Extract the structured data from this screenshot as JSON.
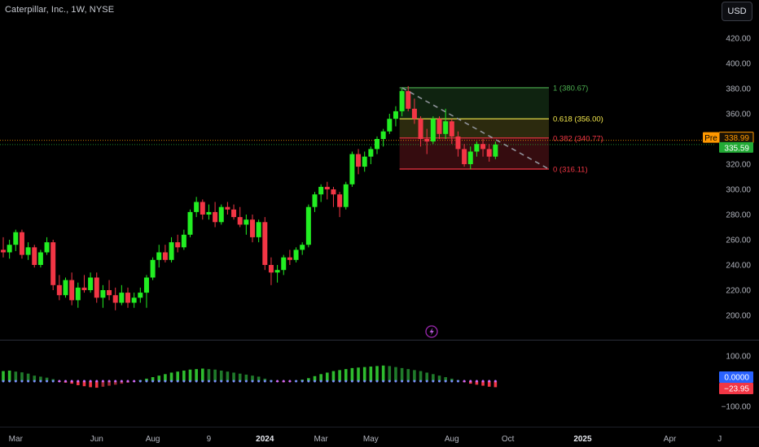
{
  "header": {
    "title": "Caterpillar, Inc., 1W, NYSE",
    "currency": "USD"
  },
  "chart_data": {
    "type": "candlestick",
    "symbol": "Caterpillar, Inc.",
    "interval": "1W",
    "exchange": "NYSE",
    "ylim": [
      180,
      440
    ],
    "y_ticks": [
      200,
      220,
      240,
      260,
      280,
      300,
      320,
      340,
      360,
      380,
      400,
      420
    ],
    "x_ticks": [
      {
        "label": "Mar",
        "bold": false,
        "bar": 2
      },
      {
        "label": "Jun",
        "bold": false,
        "bar": 15
      },
      {
        "label": "Aug",
        "bold": false,
        "bar": 24
      },
      {
        "label": "9",
        "bold": false,
        "bar": 33
      },
      {
        "label": "2024",
        "bold": true,
        "bar": 42
      },
      {
        "label": "Mar",
        "bold": false,
        "bar": 51
      },
      {
        "label": "May",
        "bold": false,
        "bar": 59
      },
      {
        "label": "Aug",
        "bold": false,
        "bar": 72
      },
      {
        "label": "Oct",
        "bold": false,
        "bar": 81
      },
      {
        "label": "2025",
        "bold": true,
        "bar": 93
      },
      {
        "label": "Apr",
        "bold": false,
        "bar": 107
      },
      {
        "label": "J",
        "bold": false,
        "bar": 115
      }
    ],
    "candles": [
      [
        252,
        262,
        246,
        250
      ],
      [
        250,
        260,
        245,
        256
      ],
      [
        256,
        268,
        251,
        266
      ],
      [
        266,
        268,
        245,
        248
      ],
      [
        248,
        258,
        244,
        254
      ],
      [
        254,
        256,
        238,
        240
      ],
      [
        240,
        252,
        238,
        250
      ],
      [
        250,
        262,
        248,
        258
      ],
      [
        258,
        260,
        220,
        224
      ],
      [
        224,
        232,
        212,
        216
      ],
      [
        216,
        230,
        214,
        228
      ],
      [
        228,
        234,
        208,
        212
      ],
      [
        212,
        226,
        206,
        222
      ],
      [
        222,
        232,
        218,
        220
      ],
      [
        220,
        234,
        218,
        230
      ],
      [
        230,
        234,
        210,
        214
      ],
      [
        214,
        224,
        206,
        220
      ],
      [
        220,
        228,
        212,
        216
      ],
      [
        216,
        222,
        204,
        210
      ],
      [
        210,
        224,
        208,
        218
      ],
      [
        218,
        222,
        206,
        210
      ],
      [
        210,
        218,
        206,
        214
      ],
      [
        214,
        222,
        210,
        218
      ],
      [
        218,
        232,
        206,
        230
      ],
      [
        230,
        246,
        228,
        244
      ],
      [
        244,
        256,
        238,
        250
      ],
      [
        250,
        256,
        242,
        244
      ],
      [
        244,
        262,
        242,
        258
      ],
      [
        258,
        264,
        250,
        254
      ],
      [
        254,
        268,
        252,
        264
      ],
      [
        264,
        284,
        262,
        282
      ],
      [
        282,
        294,
        278,
        290
      ],
      [
        290,
        292,
        276,
        280
      ],
      [
        280,
        288,
        276,
        282
      ],
      [
        282,
        290,
        270,
        274
      ],
      [
        274,
        288,
        272,
        286
      ],
      [
        286,
        290,
        280,
        284
      ],
      [
        284,
        288,
        276,
        278
      ],
      [
        278,
        286,
        270,
        272
      ],
      [
        272,
        280,
        264,
        276
      ],
      [
        276,
        280,
        258,
        262
      ],
      [
        262,
        276,
        258,
        274
      ],
      [
        274,
        278,
        236,
        240
      ],
      [
        240,
        246,
        224,
        234
      ],
      [
        234,
        240,
        226,
        236
      ],
      [
        236,
        248,
        232,
        246
      ],
      [
        246,
        252,
        240,
        244
      ],
      [
        244,
        254,
        242,
        252
      ],
      [
        252,
        258,
        248,
        256
      ],
      [
        256,
        288,
        254,
        286
      ],
      [
        286,
        298,
        282,
        296
      ],
      [
        296,
        304,
        290,
        302
      ],
      [
        302,
        306,
        292,
        300
      ],
      [
        300,
        302,
        286,
        296
      ],
      [
        296,
        298,
        278,
        286
      ],
      [
        286,
        306,
        284,
        304
      ],
      [
        304,
        330,
        302,
        328
      ],
      [
        328,
        332,
        312,
        318
      ],
      [
        318,
        330,
        314,
        326
      ],
      [
        326,
        334,
        320,
        332
      ],
      [
        332,
        342,
        328,
        340
      ],
      [
        340,
        348,
        334,
        346
      ],
      [
        346,
        360,
        344,
        356
      ],
      [
        356,
        366,
        350,
        362
      ],
      [
        362,
        380,
        358,
        378
      ],
      [
        378,
        382,
        362,
        364
      ],
      [
        364,
        372,
        352,
        356
      ],
      [
        356,
        358,
        334,
        340
      ],
      [
        340,
        348,
        328,
        338
      ],
      [
        338,
        358,
        336,
        356
      ],
      [
        356,
        358,
        340,
        344
      ],
      [
        344,
        364,
        340,
        354
      ],
      [
        354,
        356,
        336,
        342
      ],
      [
        342,
        346,
        326,
        332
      ],
      [
        332,
        336,
        318,
        320
      ],
      [
        320,
        334,
        316,
        330
      ],
      [
        330,
        338,
        326,
        336
      ],
      [
        336,
        340,
        326,
        332
      ],
      [
        332,
        336,
        322,
        326
      ],
      [
        326,
        338,
        324,
        335.59
      ]
    ],
    "fib_retracement": {
      "levels": [
        {
          "ratio": "1",
          "value": 380.67,
          "label": "1 (380.67)",
          "color": "#4caf50"
        },
        {
          "ratio": "0.618",
          "value": 356.0,
          "label": "0.618 (356.00)",
          "color": "#f5e94d"
        },
        {
          "ratio": "0.382",
          "value": 340.77,
          "label": "0.382 (340.77)",
          "color": "#f23645"
        },
        {
          "ratio": "0",
          "value": 316.11,
          "label": "0 (316.11)",
          "color": "#f23645"
        }
      ]
    },
    "trendline": {
      "from": {
        "bar": 64,
        "value": 380.67
      },
      "to": {
        "bar": 88,
        "value": 316.11
      }
    },
    "price_badges": [
      {
        "label": "Pre",
        "value": "338.99",
        "color": "#ff9800"
      },
      {
        "label": "",
        "value": "335.59",
        "color": "#22ab36"
      }
    ],
    "oscillator": {
      "ylim": [
        -130,
        130
      ],
      "y_ticks": [
        100,
        0,
        -100
      ],
      "y_tick_labels": [
        "100.00",
        "0.00",
        "−100.00"
      ],
      "current_badges": [
        {
          "value": "0.0000",
          "color": "#2962ff"
        },
        {
          "value": "−23.95",
          "color": "#f23645"
        }
      ],
      "values": [
        40,
        42,
        38,
        35,
        30,
        22,
        18,
        14,
        8,
        -2,
        -6,
        -10,
        -16,
        -20,
        -24,
        -26,
        -22,
        -18,
        -14,
        -10,
        -6,
        -2,
        4,
        10,
        16,
        22,
        28,
        34,
        38,
        42,
        46,
        48,
        50,
        48,
        46,
        42,
        38,
        34,
        30,
        26,
        22,
        18,
        10,
        4,
        -2,
        -4,
        -2,
        2,
        6,
        12,
        20,
        28,
        34,
        40,
        44,
        48,
        52,
        54,
        56,
        58,
        60,
        62,
        60,
        56,
        52,
        48,
        44,
        40,
        34,
        28,
        22,
        16,
        10,
        4,
        -4,
        -10,
        -14,
        -18,
        -22,
        -23.95
      ]
    }
  }
}
